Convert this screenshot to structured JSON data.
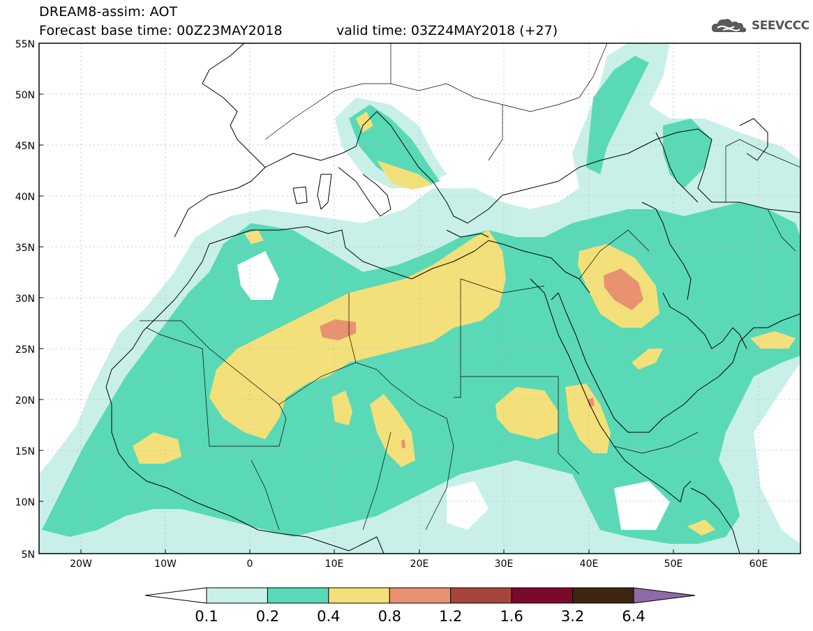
{
  "header": {
    "title": "DREAM8-assim: AOT",
    "base_time": "Forecast base time: 00Z23MAY2018",
    "valid_time": "valid time: 03Z24MAY2018 (+27)"
  },
  "logo": {
    "text": "SEEVCCC",
    "icon": "cloud-icon"
  },
  "map": {
    "lat_ticks": [
      "55N",
      "50N",
      "45N",
      "40N",
      "35N",
      "30N",
      "25N",
      "20N",
      "15N",
      "10N",
      "5N"
    ],
    "lon_ticks": [
      "20W",
      "10W",
      "0",
      "10E",
      "20E",
      "30E",
      "40E",
      "50E",
      "60E"
    ]
  },
  "legend": {
    "labels": [
      "0.1",
      "0.2",
      "0.4",
      "0.8",
      "1.2",
      "1.6",
      "3.2",
      "6.4"
    ],
    "colors": [
      "#ffffff",
      "#c8f0e8",
      "#5ad9b6",
      "#f4e07a",
      "#e89272",
      "#a6463a",
      "#7a0a2a",
      "#3d2512",
      "#8e6aa8"
    ]
  }
}
